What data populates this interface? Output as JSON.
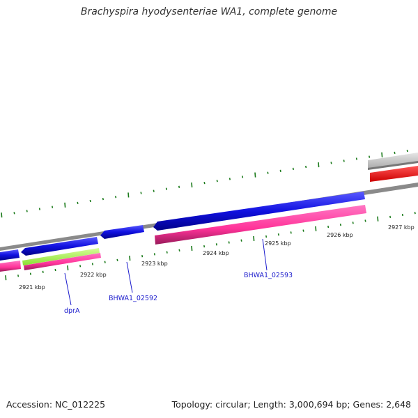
{
  "title": "Brachyspira hyodysenteriae WA1, complete genome",
  "footer": {
    "accession": "Accession: NC_012225",
    "topology": "Topology: circular; Length: 3,000,694 bp; Genes: 2,648"
  },
  "ticks": [
    "2921 kbp",
    "2922 kbp",
    "2923 kbp",
    "2924 kbp",
    "2925 kbp",
    "2926 kbp",
    "2927 kbp"
  ],
  "genes": [
    "dprA",
    "BHWA1_02592",
    "BHWA1_02593"
  ],
  "colors": {
    "cds_forward": "#1010e0",
    "gene_track": "#ff3399",
    "trna_green": "#99ff33",
    "red_feature": "#ff0000",
    "grey_feature": "#bdbdbd",
    "backbone": "#777777",
    "dots": "#1a7a1a"
  }
}
